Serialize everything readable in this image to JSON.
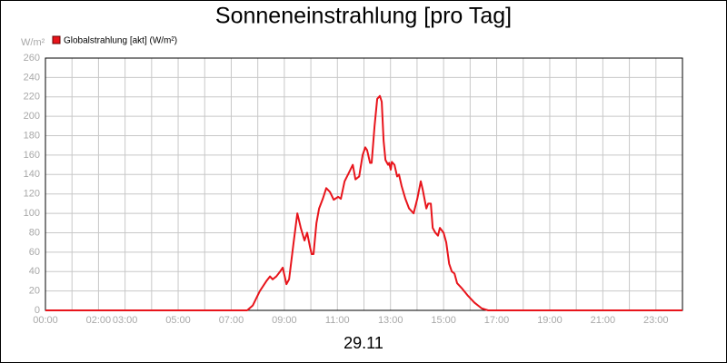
{
  "chart_data": {
    "type": "line",
    "title": "Sonneneinstrahlung [pro Tag]",
    "y_unit": "W/m²",
    "x_label": "29.11",
    "xlim": [
      0,
      24
    ],
    "ylim": [
      0,
      260
    ],
    "yticks": [
      0,
      20,
      40,
      60,
      80,
      100,
      120,
      140,
      160,
      180,
      200,
      220,
      240,
      260
    ],
    "xticks": [
      {
        "value": 0,
        "label": "00:00"
      },
      {
        "value": 2,
        "label": "02:00"
      },
      {
        "value": 3,
        "label": "03:00"
      },
      {
        "value": 5,
        "label": "05:00"
      },
      {
        "value": 7,
        "label": "07:00"
      },
      {
        "value": 9,
        "label": "09:00"
      },
      {
        "value": 11,
        "label": "11:00"
      },
      {
        "value": 13,
        "label": "13:00"
      },
      {
        "value": 15,
        "label": "15:00"
      },
      {
        "value": 17,
        "label": "17:00"
      },
      {
        "value": 19,
        "label": "19:00"
      },
      {
        "value": 21,
        "label": "21:00"
      },
      {
        "value": 23,
        "label": "23:00"
      }
    ],
    "xminor_ticks": [
      1,
      4,
      6,
      8,
      10,
      12,
      14,
      16,
      18,
      20,
      22,
      24
    ],
    "grid": true,
    "x": [
      0,
      7.6,
      7.81,
      8.08,
      8.32,
      8.46,
      8.56,
      8.7,
      8.84,
      8.94,
      9.08,
      9.18,
      9.35,
      9.49,
      9.62,
      9.76,
      9.86,
      9.97,
      10.03,
      10.1,
      10.21,
      10.31,
      10.45,
      10.58,
      10.72,
      10.86,
      11.03,
      11.13,
      11.27,
      11.4,
      11.58,
      11.68,
      11.82,
      11.95,
      12.05,
      12.12,
      12.23,
      12.29,
      12.4,
      12.5,
      12.6,
      12.67,
      12.74,
      12.81,
      12.91,
      12.95,
      13.01,
      13.05,
      13.15,
      13.25,
      13.32,
      13.42,
      13.56,
      13.7,
      13.87,
      14.01,
      14.14,
      14.21,
      14.35,
      14.42,
      14.52,
      14.59,
      14.69,
      14.79,
      14.86,
      15.0,
      15.1,
      15.21,
      15.31,
      15.41,
      15.51,
      15.68,
      15.92,
      16.16,
      16.44,
      16.68,
      24
    ],
    "series": [
      {
        "name": "Globalstrahlung [akt] (W/m²)",
        "color": "#e8141b",
        "values": [
          0,
          0,
          5,
          20,
          30,
          35,
          32,
          35,
          40,
          44,
          27,
          32,
          70,
          100,
          85,
          72,
          80,
          65,
          58,
          58,
          90,
          105,
          115,
          126,
          122,
          114,
          117,
          115,
          133,
          140,
          150,
          135,
          138,
          160,
          168,
          165,
          152,
          152,
          190,
          218,
          221,
          215,
          175,
          155,
          150,
          152,
          145,
          153,
          150,
          138,
          140,
          128,
          115,
          105,
          100,
          115,
          133,
          125,
          105,
          110,
          110,
          85,
          80,
          77,
          85,
          80,
          70,
          48,
          40,
          38,
          28,
          23,
          15,
          8,
          2,
          0,
          0
        ]
      }
    ]
  }
}
